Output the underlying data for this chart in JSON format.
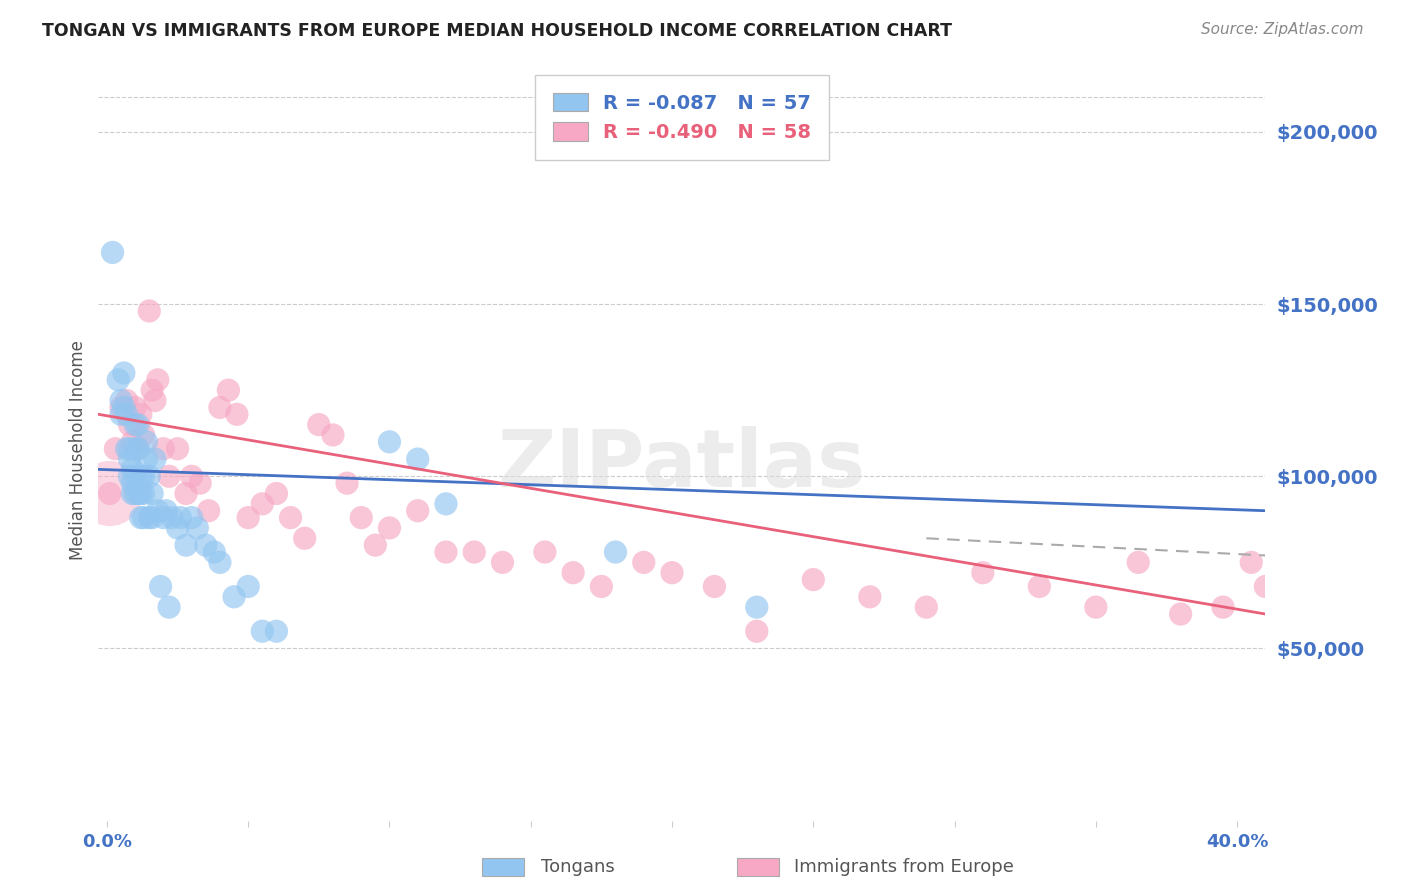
{
  "title": "TONGAN VS IMMIGRANTS FROM EUROPE MEDIAN HOUSEHOLD INCOME CORRELATION CHART",
  "source": "Source: ZipAtlas.com",
  "ylabel": "Median Household Income",
  "ytick_labels": [
    "$50,000",
    "$100,000",
    "$150,000",
    "$200,000"
  ],
  "ytick_values": [
    50000,
    100000,
    150000,
    200000
  ],
  "ylim": [
    0,
    215000
  ],
  "xlim": [
    -0.003,
    0.41
  ],
  "legend_r1": "-0.087",
  "legend_n1": "57",
  "legend_r2": "-0.490",
  "legend_n2": "58",
  "legend_label1": "Tongans",
  "legend_label2": "Immigrants from Europe",
  "color_blue": "#92C5F0",
  "color_pink": "#F7A8C4",
  "color_blue_line": "#4472C4",
  "color_pink_line": "#E8607A",
  "color_gray_dash": "#AAAAAA",
  "background_color": "#FFFFFF",
  "grid_color": "#CCCCCC",
  "axis_label_color": "#4472C4",
  "watermark": "ZIPatlas",
  "tongans_x": [
    0.002,
    0.004,
    0.005,
    0.005,
    0.006,
    0.006,
    0.007,
    0.007,
    0.008,
    0.008,
    0.008,
    0.009,
    0.009,
    0.009,
    0.01,
    0.01,
    0.01,
    0.01,
    0.011,
    0.011,
    0.011,
    0.012,
    0.012,
    0.012,
    0.013,
    0.013,
    0.013,
    0.014,
    0.014,
    0.015,
    0.015,
    0.016,
    0.016,
    0.017,
    0.018,
    0.019,
    0.02,
    0.021,
    0.022,
    0.023,
    0.025,
    0.026,
    0.028,
    0.03,
    0.032,
    0.035,
    0.038,
    0.04,
    0.045,
    0.05,
    0.055,
    0.06,
    0.1,
    0.11,
    0.12,
    0.18,
    0.23
  ],
  "tongans_y": [
    165000,
    128000,
    122000,
    118000,
    130000,
    120000,
    108000,
    118000,
    105000,
    108000,
    100000,
    98000,
    95000,
    102000,
    115000,
    108000,
    100000,
    95000,
    115000,
    108000,
    95000,
    100000,
    95000,
    88000,
    100000,
    95000,
    88000,
    110000,
    105000,
    100000,
    88000,
    95000,
    88000,
    105000,
    90000,
    68000,
    88000,
    90000,
    62000,
    88000,
    85000,
    88000,
    80000,
    88000,
    85000,
    80000,
    78000,
    75000,
    65000,
    68000,
    55000,
    55000,
    110000,
    105000,
    92000,
    78000,
    62000
  ],
  "europe_x": [
    0.001,
    0.003,
    0.005,
    0.007,
    0.008,
    0.009,
    0.01,
    0.011,
    0.012,
    0.013,
    0.015,
    0.016,
    0.017,
    0.018,
    0.02,
    0.022,
    0.025,
    0.028,
    0.03,
    0.033,
    0.036,
    0.04,
    0.043,
    0.046,
    0.05,
    0.055,
    0.06,
    0.065,
    0.07,
    0.075,
    0.08,
    0.085,
    0.09,
    0.095,
    0.1,
    0.11,
    0.12,
    0.13,
    0.14,
    0.155,
    0.165,
    0.175,
    0.19,
    0.2,
    0.215,
    0.23,
    0.25,
    0.27,
    0.29,
    0.31,
    0.33,
    0.35,
    0.365,
    0.38,
    0.395,
    0.405,
    0.41,
    0.415
  ],
  "europe_y": [
    95000,
    108000,
    120000,
    122000,
    115000,
    110000,
    120000,
    108000,
    118000,
    112000,
    148000,
    125000,
    122000,
    128000,
    108000,
    100000,
    108000,
    95000,
    100000,
    98000,
    90000,
    120000,
    125000,
    118000,
    88000,
    92000,
    95000,
    88000,
    82000,
    115000,
    112000,
    98000,
    88000,
    80000,
    85000,
    90000,
    78000,
    78000,
    75000,
    78000,
    72000,
    68000,
    75000,
    72000,
    68000,
    55000,
    70000,
    65000,
    62000,
    72000,
    68000,
    62000,
    75000,
    60000,
    62000,
    75000,
    68000,
    65000
  ],
  "europe_large_x": [
    0.001
  ],
  "europe_large_y": [
    95000
  ],
  "blue_line_x0": -0.003,
  "blue_line_x1": 0.41,
  "blue_line_y0": 102000,
  "blue_line_y1": 90000,
  "pink_line_x0": -0.003,
  "pink_line_x1": 0.41,
  "pink_line_y0": 118000,
  "pink_line_y1": 60000,
  "dash_line_x0": 0.29,
  "dash_line_x1": 0.41,
  "dash_line_y0": 82000,
  "dash_line_y1": 77000
}
